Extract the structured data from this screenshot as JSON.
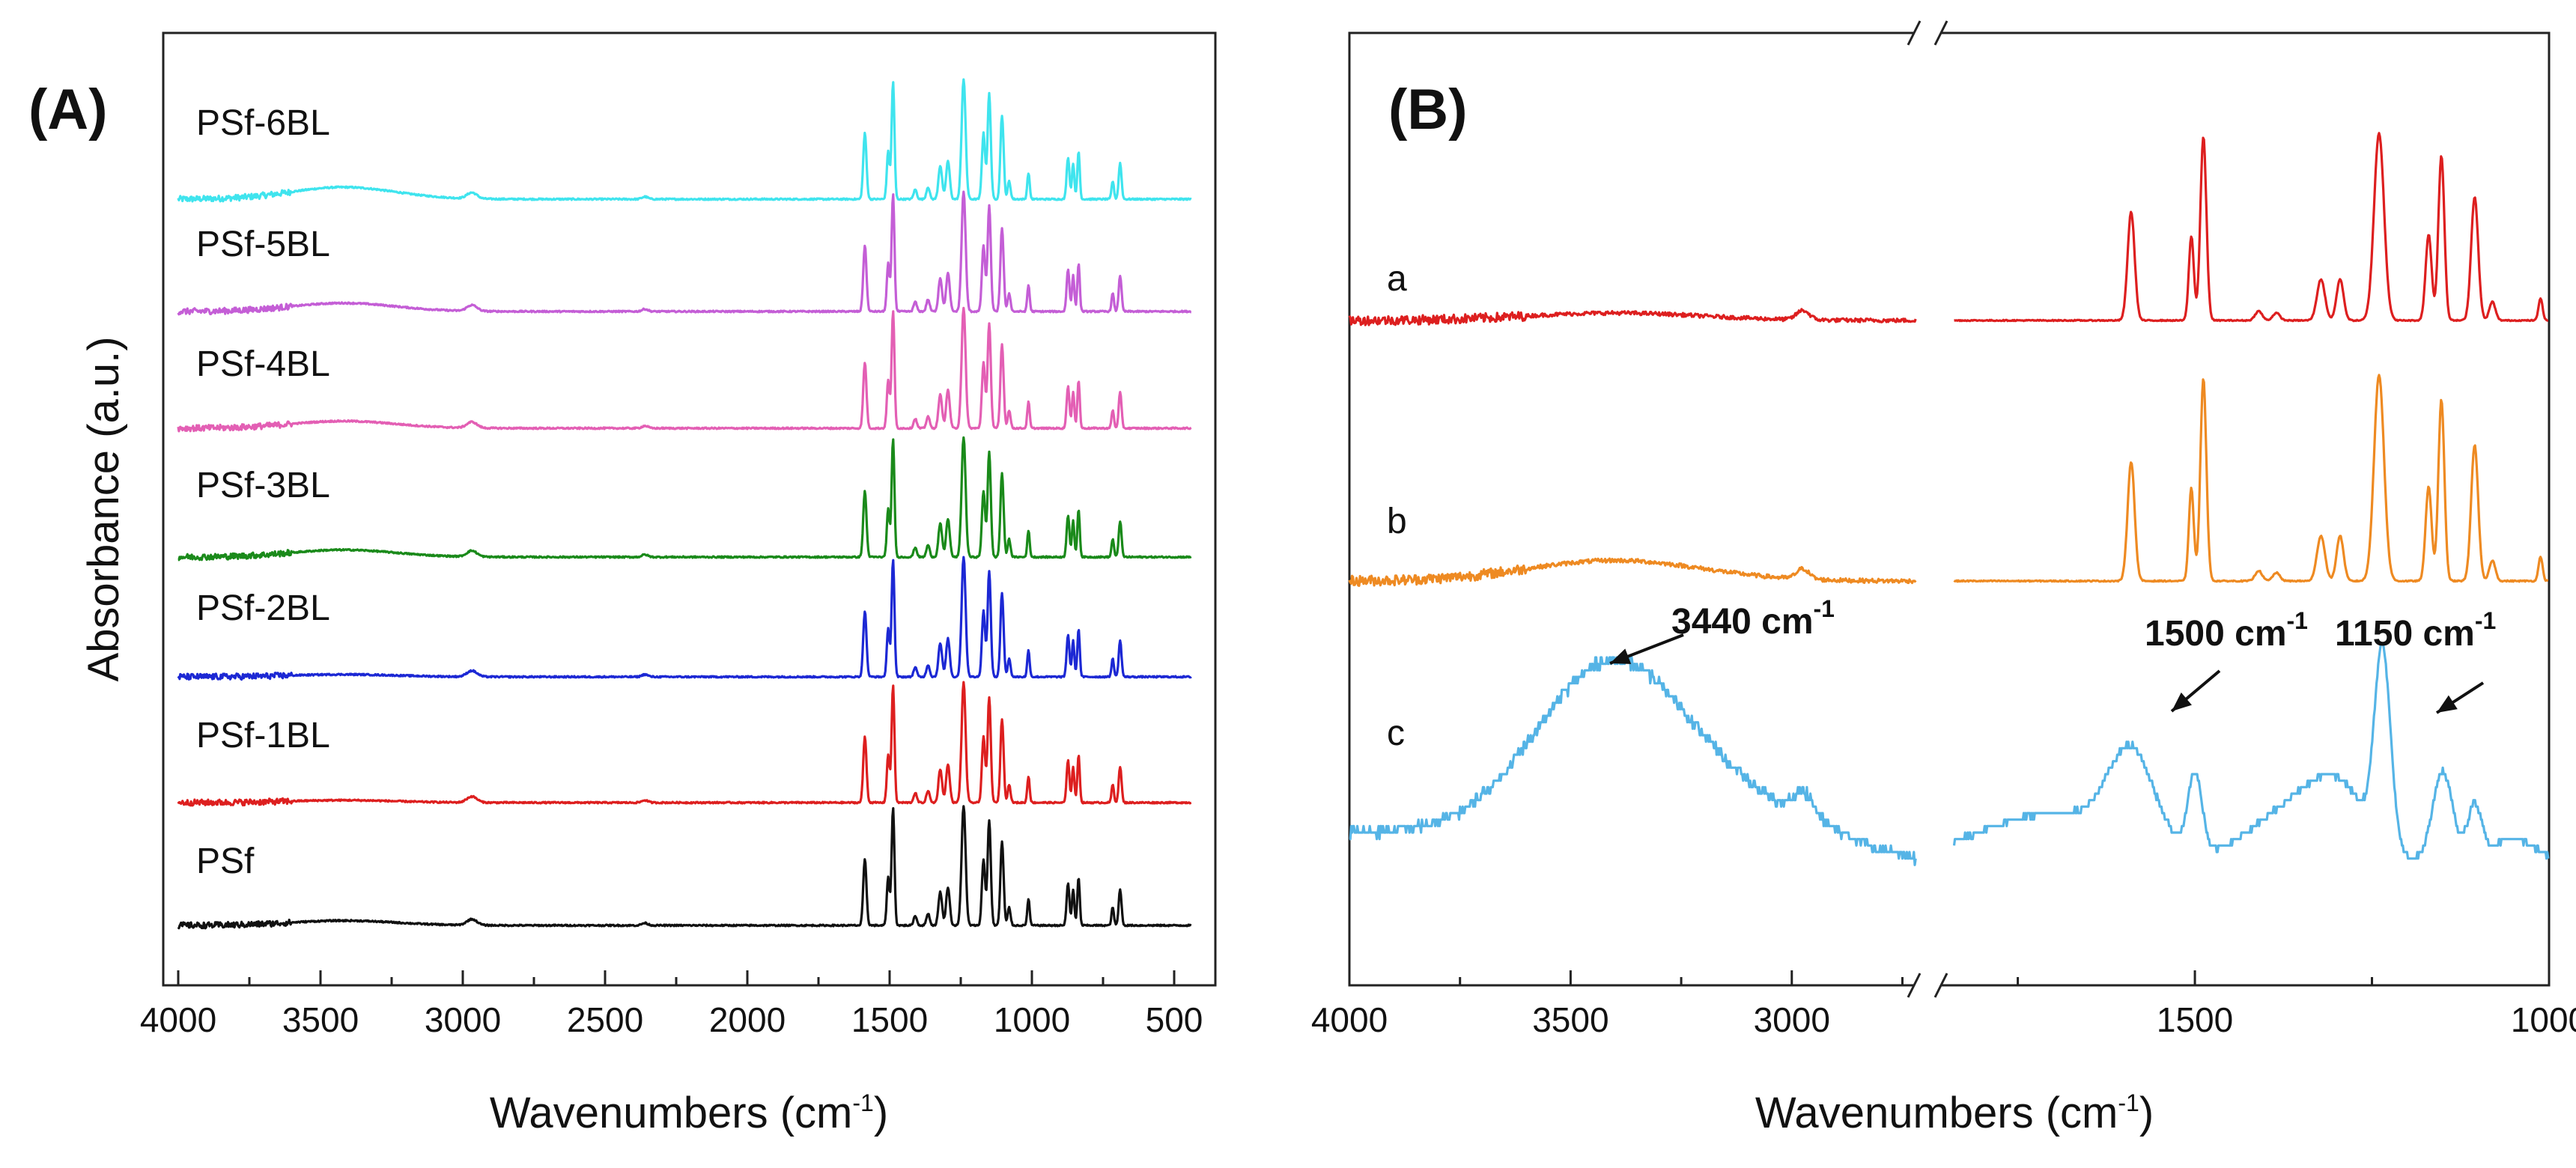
{
  "chart_data": [
    {
      "panel": "(A)",
      "type": "line",
      "xlabel": "Wavenumbers (cm",
      "xlabel_sup": "-1",
      "xlabel_end": ")",
      "ylabel": "Absorbance (a.u.)",
      "xlim": [
        4000,
        500
      ],
      "xticks": [
        "4000",
        "3500",
        "3000",
        "2500",
        "2000",
        "1500",
        "1000",
        "500"
      ],
      "grid": false,
      "series": [
        {
          "name": "PSf-6BL",
          "color": "#3fe4ee"
        },
        {
          "name": "PSf-5BL",
          "color": "#c45ed6"
        },
        {
          "name": "PSf-4BL",
          "color": "#e35fb4"
        },
        {
          "name": "PSf-3BL",
          "color": "#1a8a1a"
        },
        {
          "name": "PSf-2BL",
          "color": "#1c28d4"
        },
        {
          "name": "PSf-1BL",
          "color": "#dd1f1f"
        },
        {
          "name": "PSf",
          "color": "#111111"
        }
      ]
    },
    {
      "panel": "(B)",
      "type": "line",
      "xlabel": "Wavenumbers (cm",
      "xlabel_sup": "-1",
      "xlabel_end": ")",
      "xlim_left": [
        4000,
        2700
      ],
      "xlim_right": [
        1850,
        1000
      ],
      "xticks": [
        "4000",
        "3500",
        "3000",
        "1500",
        "1000"
      ],
      "axis_break": true,
      "series": [
        {
          "name": "a",
          "color": "#dd1f1f"
        },
        {
          "name": "b",
          "color": "#ee8a22"
        },
        {
          "name": "c",
          "color": "#55b4e6"
        }
      ],
      "annotations": [
        {
          "text": "3440 cm",
          "sup": "-1",
          "x": 3440
        },
        {
          "text": "1500 cm",
          "sup": "-1",
          "x": 1500
        },
        {
          "text": "1150 cm",
          "sup": "-1",
          "x": 1150
        }
      ]
    }
  ]
}
